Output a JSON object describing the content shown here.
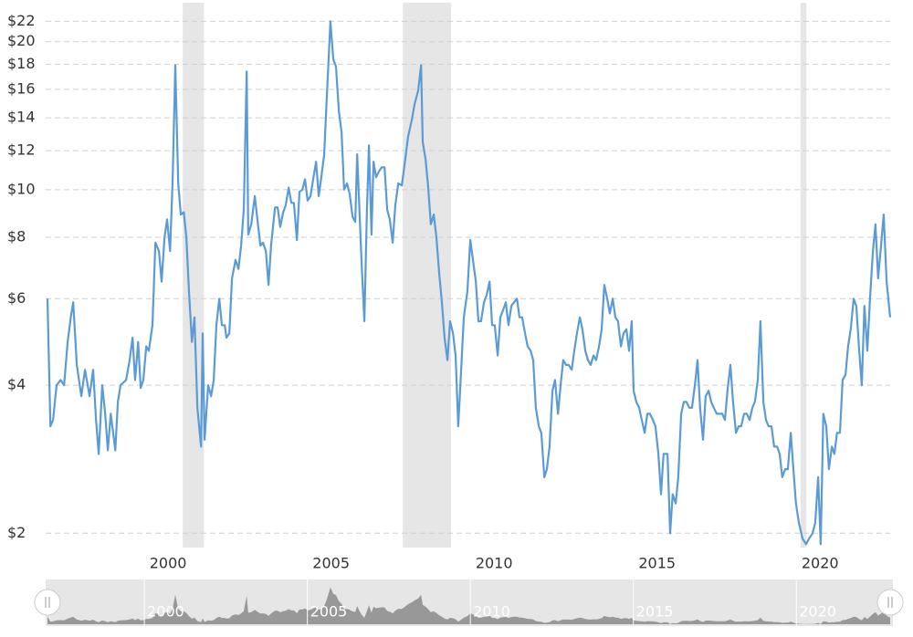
{
  "chart_data": {
    "type": "line",
    "log_scale": true,
    "grid": true,
    "xlim": [
      1996.3,
      2022.15
    ],
    "ylim": [
      1.87,
      23.8
    ],
    "xticks": [
      2000,
      2005,
      2010,
      2015,
      2020
    ],
    "yticks": [
      {
        "value": 2,
        "label": "$2"
      },
      {
        "value": 4,
        "label": "$4"
      },
      {
        "value": 6,
        "label": "$6"
      },
      {
        "value": 8,
        "label": "$8"
      },
      {
        "value": 10,
        "label": "$10"
      },
      {
        "value": 12,
        "label": "$12"
      },
      {
        "value": 14,
        "label": "$14"
      },
      {
        "value": 16,
        "label": "$16"
      },
      {
        "value": 18,
        "label": "$18"
      },
      {
        "value": 20,
        "label": "$20"
      },
      {
        "value": 22,
        "label": "$22"
      }
    ],
    "recessions": [
      [
        2000.45,
        2001.1
      ],
      [
        2007.2,
        2008.68
      ],
      [
        2019.4,
        2019.58
      ]
    ],
    "recession_color": "#e6e6e6",
    "x": [
      1996.3,
      1996.39,
      1996.47,
      1996.58,
      1996.7,
      1996.81,
      1996.92,
      1997.03,
      1997.09,
      1997.2,
      1997.34,
      1997.45,
      1997.59,
      1997.7,
      1997.79,
      1997.87,
      1997.98,
      1998.07,
      1998.15,
      1998.24,
      1998.38,
      1998.46,
      1998.54,
      1998.71,
      1998.82,
      1998.91,
      1998.99,
      1999.08,
      1999.16,
      1999.24,
      1999.33,
      1999.41,
      1999.52,
      1999.61,
      1999.72,
      1999.8,
      1999.89,
      1999.97,
      2000.06,
      2000.14,
      2000.22,
      2000.31,
      2000.39,
      2000.48,
      2000.56,
      2000.64,
      2000.73,
      2000.81,
      2000.9,
      2001.01,
      2001.06,
      2001.12,
      2001.23,
      2001.32,
      2001.4,
      2001.48,
      2001.57,
      2001.65,
      2001.74,
      2001.79,
      2001.88,
      2001.96,
      2002.07,
      2002.16,
      2002.24,
      2002.32,
      2002.41,
      2002.46,
      2002.55,
      2002.66,
      2002.74,
      2002.83,
      2002.91,
      2003.0,
      2003.08,
      2003.16,
      2003.28,
      2003.36,
      2003.44,
      2003.53,
      2003.61,
      2003.7,
      2003.78,
      2003.86,
      2003.95,
      2004.03,
      2004.12,
      2004.2,
      2004.28,
      2004.37,
      2004.45,
      2004.54,
      2004.62,
      2004.7,
      2004.79,
      2004.87,
      2004.98,
      2005.07,
      2005.15,
      2005.24,
      2005.32,
      2005.4,
      2005.49,
      2005.57,
      2005.66,
      2005.74,
      2005.8,
      2005.88,
      2005.94,
      2006.02,
      2006.1,
      2006.16,
      2006.24,
      2006.3,
      2006.38,
      2006.47,
      2006.55,
      2006.64,
      2006.72,
      2006.8,
      2006.89,
      2006.97,
      2007.06,
      2007.17,
      2007.25,
      2007.36,
      2007.48,
      2007.56,
      2007.67,
      2007.76,
      2007.81,
      2007.9,
      2007.98,
      2008.06,
      2008.15,
      2008.23,
      2008.32,
      2008.4,
      2008.48,
      2008.57,
      2008.65,
      2008.74,
      2008.82,
      2008.9,
      2008.99,
      2009.07,
      2009.18,
      2009.27,
      2009.35,
      2009.44,
      2009.52,
      2009.6,
      2009.69,
      2009.77,
      2009.86,
      2009.94,
      2010.02,
      2010.11,
      2010.19,
      2010.28,
      2010.36,
      2010.44,
      2010.53,
      2010.61,
      2010.7,
      2010.78,
      2010.86,
      2010.95,
      2011.03,
      2011.12,
      2011.2,
      2011.28,
      2011.37,
      2011.45,
      2011.54,
      2011.62,
      2011.7,
      2011.79,
      2011.87,
      2011.96,
      2012.04,
      2012.12,
      2012.21,
      2012.29,
      2012.38,
      2012.46,
      2012.54,
      2012.63,
      2012.71,
      2012.8,
      2012.88,
      2012.96,
      2013.05,
      2013.13,
      2013.22,
      2013.3,
      2013.38,
      2013.47,
      2013.55,
      2013.64,
      2013.72,
      2013.8,
      2013.89,
      2013.97,
      2014.06,
      2014.14,
      2014.22,
      2014.28,
      2014.36,
      2014.45,
      2014.53,
      2014.62,
      2014.7,
      2014.78,
      2014.87,
      2014.95,
      2015.04,
      2015.12,
      2015.2,
      2015.32,
      2015.4,
      2015.48,
      2015.57,
      2015.65,
      2015.74,
      2015.82,
      2015.9,
      2015.99,
      2016.07,
      2016.16,
      2016.24,
      2016.32,
      2016.41,
      2016.49,
      2016.58,
      2016.66,
      2016.74,
      2016.83,
      2016.91,
      2017.0,
      2017.08,
      2017.16,
      2017.25,
      2017.33,
      2017.42,
      2017.5,
      2017.58,
      2017.67,
      2017.75,
      2017.84,
      2017.92,
      2018.0,
      2018.09,
      2018.17,
      2018.26,
      2018.34,
      2018.42,
      2018.51,
      2018.59,
      2018.68,
      2018.76,
      2018.84,
      2018.93,
      2019.01,
      2019.1,
      2019.18,
      2019.26,
      2019.35,
      2019.46,
      2019.57,
      2019.66,
      2019.77,
      2019.85,
      2019.94,
      2020.02,
      2020.1,
      2020.19,
      2020.27,
      2020.36,
      2020.44,
      2020.52,
      2020.61,
      2020.69,
      2020.78,
      2020.86,
      2020.94,
      2021.03,
      2021.11,
      2021.2,
      2021.28,
      2021.36,
      2021.45,
      2021.53,
      2021.62,
      2021.7,
      2021.78,
      2021.87,
      2021.95,
      2022.04,
      2022.15
    ],
    "series": [
      {
        "color": "#5b9bd5",
        "values": [
          6.0,
          3.3,
          3.4,
          4.0,
          4.1,
          4.0,
          4.9,
          5.6,
          5.9,
          4.4,
          3.8,
          4.3,
          3.8,
          4.3,
          3.4,
          2.9,
          4.0,
          3.5,
          2.95,
          3.5,
          2.95,
          3.7,
          4.0,
          4.1,
          4.5,
          5.0,
          4.1,
          4.9,
          3.95,
          4.1,
          4.8,
          4.7,
          5.3,
          7.8,
          7.5,
          6.5,
          8.0,
          8.7,
          7.5,
          10.5,
          17.9,
          10.3,
          8.9,
          9.0,
          8.0,
          6.2,
          4.9,
          5.5,
          3.6,
          3.0,
          5.1,
          3.1,
          4.0,
          3.8,
          4.1,
          5.3,
          6.0,
          5.3,
          5.3,
          5.0,
          5.1,
          6.6,
          7.2,
          6.9,
          7.7,
          9.1,
          17.4,
          8.1,
          8.5,
          9.7,
          8.7,
          7.7,
          7.8,
          7.5,
          6.4,
          7.7,
          9.2,
          9.2,
          8.4,
          9.0,
          9.3,
          10.1,
          9.4,
          9.4,
          7.9,
          9.9,
          10.0,
          10.5,
          9.5,
          9.7,
          10.5,
          11.4,
          9.7,
          10.6,
          11.8,
          15.5,
          22.0,
          18.4,
          17.8,
          14.4,
          13.1,
          10.0,
          10.3,
          9.8,
          8.8,
          8.6,
          11.8,
          8.7,
          7.0,
          5.4,
          9.1,
          12.3,
          8.1,
          11.4,
          10.6,
          10.9,
          11.1,
          11.1,
          9.1,
          8.7,
          7.8,
          9.3,
          10.3,
          10.2,
          11.2,
          12.8,
          13.9,
          14.9,
          15.9,
          17.9,
          12.5,
          11.5,
          10.1,
          8.5,
          8.9,
          8.0,
          6.7,
          5.9,
          5.0,
          4.5,
          5.4,
          5.1,
          4.6,
          3.3,
          4.3,
          5.5,
          6.2,
          7.9,
          7.2,
          6.5,
          5.4,
          5.4,
          5.9,
          6.1,
          6.5,
          5.3,
          5.3,
          4.6,
          5.5,
          5.7,
          5.9,
          5.3,
          5.8,
          5.9,
          6.0,
          5.5,
          5.5,
          5.1,
          4.8,
          4.7,
          4.5,
          3.6,
          3.3,
          3.2,
          2.6,
          2.7,
          3.0,
          3.9,
          4.1,
          3.5,
          4.0,
          4.5,
          4.4,
          4.4,
          4.3,
          4.7,
          5.1,
          5.5,
          5.2,
          4.7,
          4.5,
          4.4,
          4.6,
          4.5,
          4.8,
          5.2,
          6.4,
          6.0,
          5.6,
          6.0,
          5.5,
          5.4,
          4.8,
          5.1,
          5.2,
          4.7,
          5.4,
          3.9,
          3.7,
          3.6,
          3.4,
          3.2,
          3.5,
          3.5,
          3.4,
          3.3,
          2.9,
          2.4,
          2.9,
          2.9,
          2.0,
          2.4,
          2.3,
          2.6,
          3.5,
          3.7,
          3.7,
          3.6,
          3.6,
          4.0,
          4.5,
          3.6,
          3.1,
          3.8,
          3.9,
          3.7,
          3.6,
          3.5,
          3.5,
          3.5,
          3.4,
          3.9,
          4.4,
          3.7,
          3.2,
          3.3,
          3.3,
          3.5,
          3.5,
          3.4,
          3.6,
          3.7,
          4.1,
          5.4,
          3.7,
          3.4,
          3.3,
          3.3,
          3.0,
          3.0,
          2.9,
          2.6,
          2.7,
          2.7,
          3.2,
          2.7,
          2.3,
          2.1,
          1.95,
          1.9,
          1.95,
          2.0,
          2.1,
          2.6,
          1.9,
          3.5,
          3.3,
          2.7,
          3.0,
          2.9,
          3.2,
          3.2,
          4.1,
          4.2,
          4.8,
          5.2,
          6.0,
          5.8,
          4.7,
          4.0,
          5.8,
          4.7,
          6.0,
          7.5,
          8.5,
          6.6,
          7.7,
          8.9,
          6.5,
          5.5
        ]
      }
    ]
  }
}
